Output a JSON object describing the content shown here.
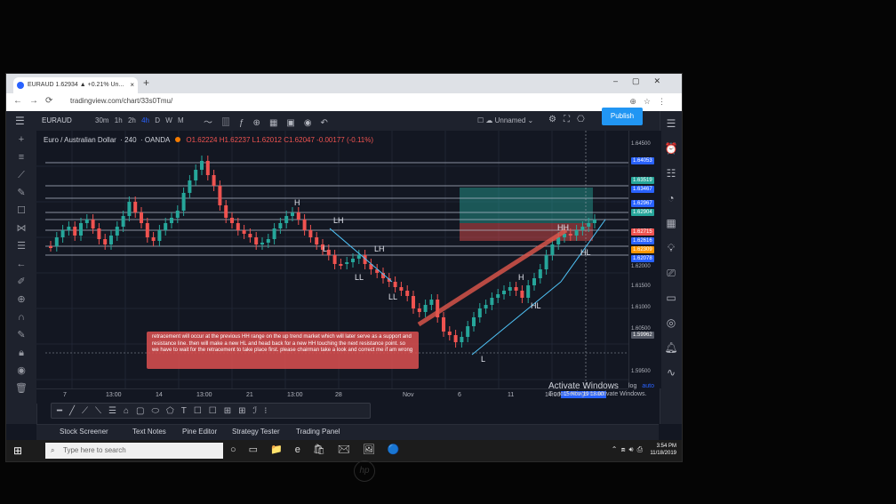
{
  "browser": {
    "tab_title": "EURAUD 1.62934 ▲ +0.21% Un...",
    "tab_close": "×",
    "new_tab": "+",
    "url": "tradingview.com/chart/33s0Tmu/"
  },
  "toolbar": {
    "symbol": "EURAUD",
    "timeframes": [
      "30m",
      "1h",
      "2h",
      "4h",
      "D",
      "W",
      "M"
    ],
    "active_timeframe": "4h",
    "layout_name": "Unnamed",
    "publish_label": "Publish"
  },
  "legend": {
    "instrument": "Euro / Australian Dollar",
    "interval": "240",
    "broker": "OANDA",
    "ohlc": "O1.62224 H1.62237 L1.62012 C1.62047 -0.00177 (-0.11%)"
  },
  "price_axis": {
    "labels": [
      "1.64500",
      "1.62000",
      "1.61500",
      "1.61000",
      "1.60500",
      "1.59500"
    ],
    "tags": [
      {
        "text": "1.64053",
        "color": "#2962ff"
      },
      {
        "text": "1.63519",
        "color": "#26a69a"
      },
      {
        "text": "1.63467",
        "color": "#2962ff"
      },
      {
        "text": "1.62967",
        "color": "#2962ff"
      },
      {
        "text": "1.62904",
        "color": "#26a69a"
      },
      {
        "text": "1.62715",
        "color": "#ef5350"
      },
      {
        "text": "1.62616",
        "color": "#2962ff"
      },
      {
        "text": "1.62309",
        "color": "#ff9800"
      },
      {
        "text": "1.62078",
        "color": "#2962ff"
      },
      {
        "text": "1.59962",
        "color": "#555a66"
      }
    ]
  },
  "time_axis": {
    "labels": [
      "7",
      "13:00",
      "14",
      "13:00",
      "21",
      "13:00",
      "28",
      "Nov",
      "6",
      "11",
      "14:00",
      "14"
    ],
    "cursor_label": "15 Nov '19  18:00"
  },
  "chart_labels": [
    "H",
    "LH",
    "L",
    "LH",
    "LL",
    "LL",
    "H",
    "HL",
    "L",
    "HH",
    "HL"
  ],
  "annotation": "retracement will occur at the previous HH range on the up trend market which will later serve as a support and resistance line. then will make a new HL and head back for a new HH touching the next resistance point. so we have to wait for the retracement to take place first. please chairman take a look and correct me if am wrong",
  "watermark": {
    "title": "Activate Windows",
    "subtitle": "Go to Settings to activate Windows."
  },
  "scale": {
    "log": "log",
    "auto": "auto"
  },
  "bottom_tabs": [
    "Stock Screener",
    "Text Notes",
    "Pine Editor",
    "Strategy Tester",
    "Trading Panel"
  ],
  "taskbar": {
    "search_placeholder": "Type here to search",
    "time": "3:54 PM",
    "date": "11/18/2019"
  },
  "colors": {
    "background": "#131722",
    "up_candle": "#26a69a",
    "down_candle": "#ef5350",
    "trend_line": "#e2574c",
    "accent": "#2962ff"
  }
}
